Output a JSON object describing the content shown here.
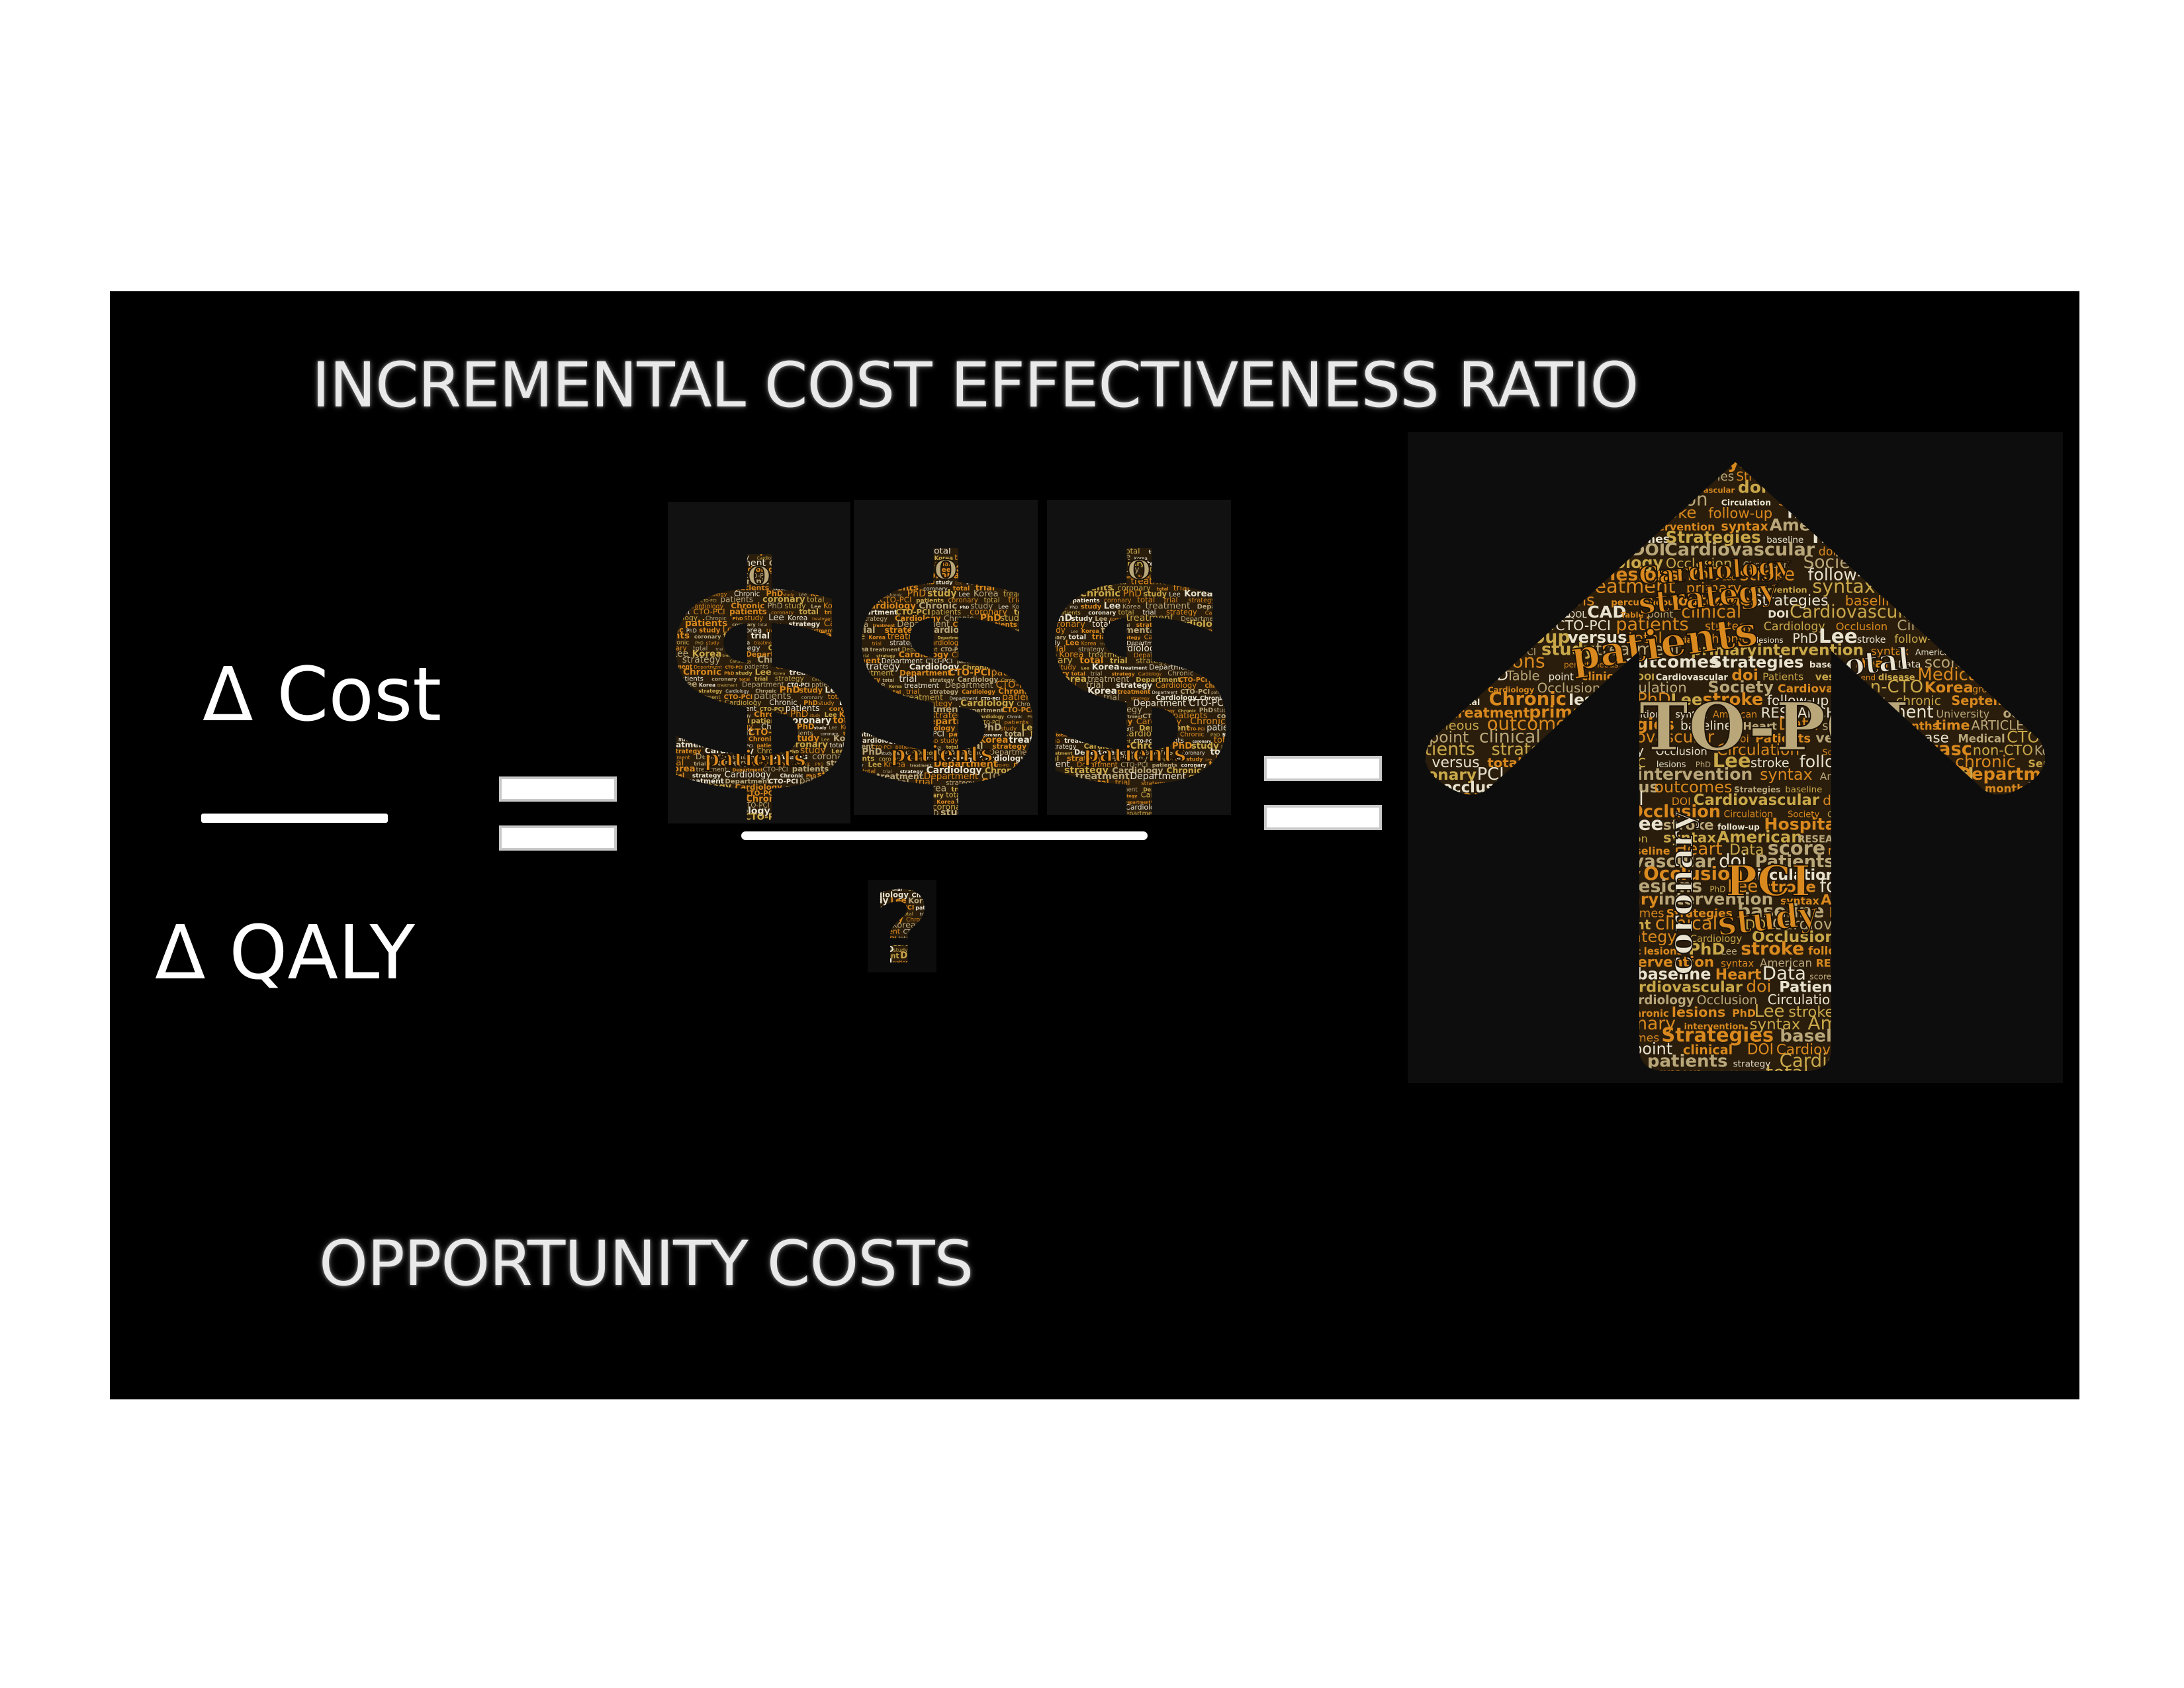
{
  "slide": {
    "title": "INCREMENTAL COST EFFECTIVENESS RATIO",
    "footer": "OPPORTUNITY COSTS",
    "formula": {
      "numerator": "Δ Cost",
      "denominator": "Δ QALY"
    },
    "dollar_word_cloud": {
      "words": [
        "CTO-PCI",
        "patients",
        "coronary",
        "total",
        "trial",
        "strategy",
        "Cardiology",
        "Chronic",
        "PhD",
        "study",
        "Lee",
        "Korea",
        "treatment",
        "Department"
      ]
    },
    "arrow_word_cloud": {
      "words": [
        "CTO-PCI",
        "patients",
        "strategy",
        "Cardiology",
        "Occlusion",
        "Circulation",
        "Society",
        "Cardiovasc",
        "non-CTO",
        "Korea",
        "group",
        "versus",
        "total",
        "trial",
        "Chronic",
        "lesions",
        "PhD",
        "Lee",
        "stroke",
        "follow-up",
        "Hospital",
        "chronic",
        "September",
        "coronary",
        "PCI",
        "study",
        "treatment",
        "primary",
        "intervention",
        "syntax",
        "American",
        "RESEARCH",
        "Department",
        "University",
        "occlusions",
        "percutaneous",
        "outcomes",
        "Strategies",
        "baseline",
        "Heart",
        "Data",
        "score",
        "rate",
        "months",
        "time",
        "ARTICLE",
        "QOL",
        "CAD",
        "Table",
        "point",
        "clinical",
        "DOI",
        "Cardiovascular",
        "doi",
        "Patients",
        "vessels",
        "end",
        "disease",
        "Medical"
      ]
    },
    "colors": {
      "background": "#000000",
      "page": "#ffffff",
      "text": "#ffffff",
      "cloud_orange": "#d9891e",
      "cloud_gold": "#c9a84a",
      "cloud_tan": "#b9a77a",
      "cloud_white": "#e8e2cf"
    }
  }
}
